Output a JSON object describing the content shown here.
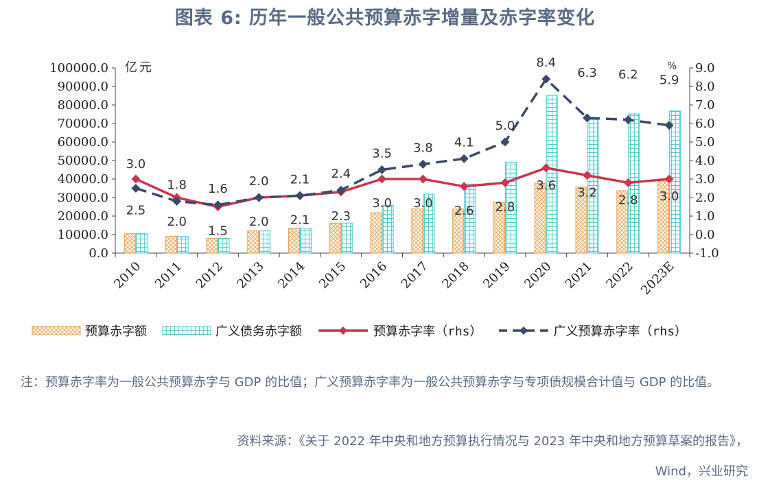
{
  "title": "图表 6:  历年一般公共预算赤字增量及赤字率变化",
  "note": "注：预算赤字率为一般公共预算赤字与 GDP 的比值；广义预算赤字率为一般公共预算赤字与专项债规模合计值与 GDP 的比值。",
  "source_line1": "资料来源：《关于 2022 年中央和地方预算执行情况与 2023 年中央和地方预算草案的报告》，",
  "source_line2": "Wind，兴业研究",
  "chart_data": {
    "type": "bar",
    "categories": [
      "2010",
      "2011",
      "2012",
      "2013",
      "2014",
      "2015",
      "2016",
      "2017",
      "2018",
      "2019",
      "2020",
      "2021",
      "2022",
      "2023E"
    ],
    "left_unit": "亿元",
    "right_unit": "%",
    "ylim_left": [
      0,
      100000
    ],
    "left_ticks": [
      "100000.0",
      "90000.0",
      "80000.0",
      "70000.0",
      "60000.0",
      "50000.0",
      "40000.0",
      "30000.0",
      "20000.0",
      "10000.0",
      "0.0"
    ],
    "ylim_right": [
      -1,
      9
    ],
    "right_ticks": [
      "9.0",
      "8.0",
      "7.0",
      "6.0",
      "5.0",
      "4.0",
      "3.0",
      "2.0",
      "1.0",
      "0.0",
      "-1.0"
    ],
    "series": [
      {
        "name": "预算赤字额",
        "type": "bar",
        "axis": "left",
        "color": "#f0a860",
        "values": [
          10500,
          9000,
          8000,
          12000,
          13500,
          16200,
          21800,
          23800,
          23800,
          27600,
          37600,
          35700,
          33700,
          38800
        ]
      },
      {
        "name": "广义债务赤字额",
        "type": "bar",
        "axis": "left",
        "color": "#5fd3d3",
        "values": [
          10500,
          9000,
          8000,
          12000,
          13500,
          16200,
          25800,
          31800,
          37300,
          49100,
          85100,
          72200,
          75200,
          76800
        ]
      },
      {
        "name": "预算赤字率（rhs）",
        "type": "line",
        "axis": "right",
        "color": "#c8364f",
        "values": [
          3.0,
          2.0,
          1.5,
          2.0,
          2.1,
          2.3,
          3.0,
          3.0,
          2.6,
          2.8,
          3.6,
          3.2,
          2.8,
          3.0
        ],
        "labels": [
          "3.0",
          "2.0",
          "1.5",
          "2.0",
          "2.1",
          "2.3",
          "3.0",
          "3.0",
          "2.6",
          "2.8",
          "3.6",
          "3.2",
          "2.8",
          "3.0"
        ]
      },
      {
        "name": "广义预算赤字率（rhs）",
        "type": "line",
        "axis": "right",
        "color": "#3c4a66",
        "dash": true,
        "values": [
          2.5,
          1.8,
          1.6,
          2.0,
          2.1,
          2.4,
          3.5,
          3.8,
          4.1,
          5.0,
          8.4,
          6.3,
          6.2,
          5.9
        ],
        "labels": [
          "2.5",
          "1.8",
          "1.6",
          "2.0",
          "2.1",
          "2.4",
          "3.5",
          "3.8",
          "4.1",
          "5.0",
          "8.4",
          "6.3",
          "6.2",
          "5.9"
        ]
      }
    ]
  }
}
